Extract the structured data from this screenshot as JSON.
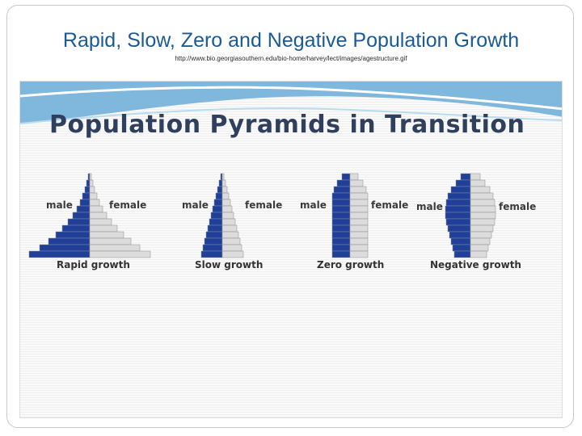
{
  "slide": {
    "title": "Rapid, Slow, Zero and Negative Population Growth",
    "source_url": "http://www.bio.georgiasouthern.edu/bio-home/harvey/lect/images/agestructure.gif"
  },
  "figure": {
    "heading": "Population Pyramids in Transition",
    "colors": {
      "male": "#1f3f99",
      "female": "#dcdcdc",
      "outline": "#8a8a8a"
    },
    "pyramids": [
      {
        "caption": "Rapid growth",
        "male_label": "male",
        "female_label": "female",
        "widths": [
          2,
          4,
          6,
          9,
          12,
          16,
          21,
          27,
          34,
          42,
          51,
          62,
          75
        ]
      },
      {
        "caption": "Slow growth",
        "male_label": "male",
        "female_label": "female",
        "widths": [
          2,
          4,
          6,
          8,
          10,
          12,
          14,
          16,
          18,
          20,
          22,
          24,
          26
        ]
      },
      {
        "caption": "Zero growth",
        "male_label": "male",
        "female_label": "female",
        "widths": [
          10,
          16,
          20,
          22,
          22,
          22,
          22,
          22,
          22,
          22,
          22,
          22,
          22
        ]
      },
      {
        "caption": "Negative growth",
        "male_label": "male",
        "female_label": "female",
        "widths": [
          12,
          18,
          24,
          28,
          30,
          31,
          31,
          30,
          28,
          26,
          24,
          22,
          20
        ]
      }
    ]
  }
}
